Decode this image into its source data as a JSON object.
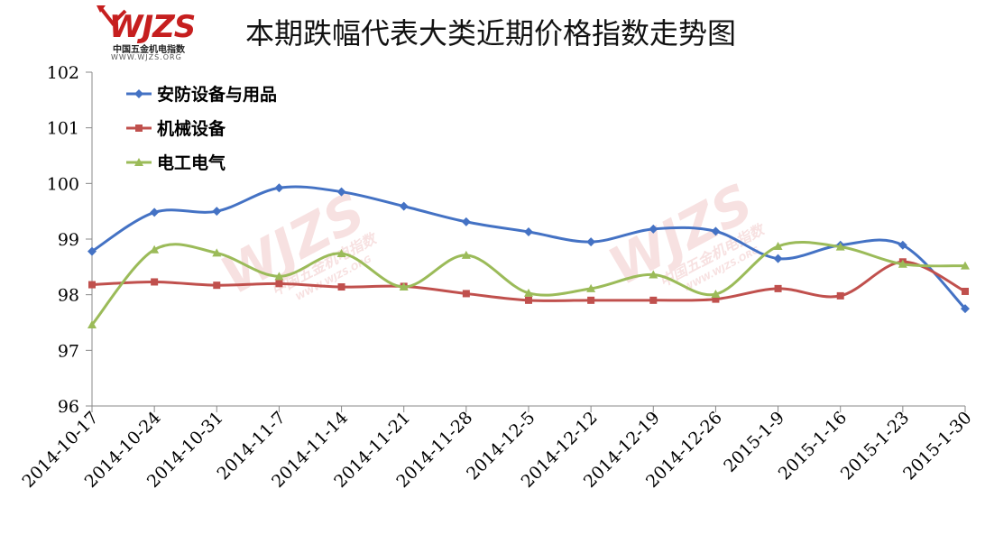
{
  "logo": {
    "mark": "WJZS",
    "name": "中国五金机电指数",
    "url": "WWW.WJZS.ORG"
  },
  "chart_data": {
    "type": "line",
    "title": "本期跌幅代表大类近期价格指数走势图",
    "xlabel": "",
    "ylabel": "",
    "categories": [
      "2014-10-17",
      "2014-10-24",
      "2014-10-31",
      "2014-11-7",
      "2014-11-14",
      "2014-11-21",
      "2014-11-28",
      "2014-12-5",
      "2014-12-12",
      "2014-12-19",
      "2014-12-26",
      "2015-1-9",
      "2015-1-16",
      "2015-1-23",
      "2015-1-30"
    ],
    "ylim": [
      96,
      102
    ],
    "yticks": [
      96,
      97,
      98,
      99,
      100,
      101,
      102
    ],
    "grid": false,
    "legend_position": "top-left",
    "smooth": true,
    "series": [
      {
        "name": "安防设备与用品",
        "color": "#4472c4",
        "marker": "diamond",
        "values": [
          98.78,
          99.48,
          99.5,
          99.92,
          99.85,
          99.59,
          99.31,
          99.13,
          98.95,
          99.18,
          99.14,
          98.65,
          98.89,
          98.89,
          97.75
        ]
      },
      {
        "name": "机械设备",
        "color": "#c0504d",
        "marker": "square",
        "values": [
          98.18,
          98.23,
          98.17,
          98.2,
          98.14,
          98.15,
          98.02,
          97.9,
          97.9,
          97.9,
          97.92,
          98.11,
          97.98,
          98.59,
          98.06
        ]
      },
      {
        "name": "电工电气",
        "color": "#9bbb59",
        "marker": "triangle",
        "values": [
          97.46,
          98.81,
          98.75,
          98.33,
          98.74,
          98.14,
          98.71,
          98.03,
          98.11,
          98.36,
          98.01,
          98.87,
          98.86,
          98.55,
          98.52
        ]
      }
    ]
  }
}
